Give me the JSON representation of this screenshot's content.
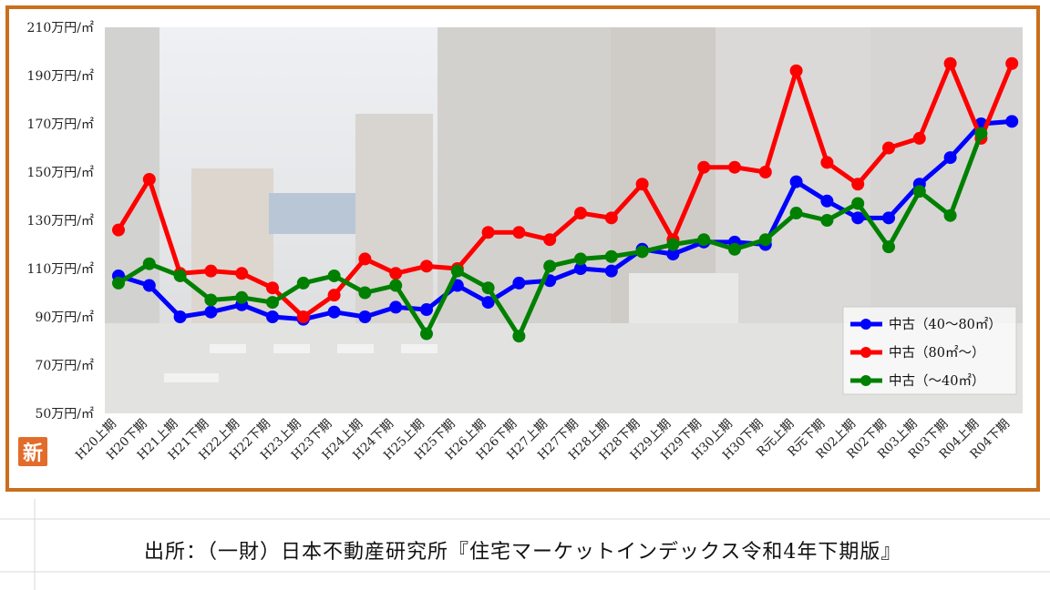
{
  "chart_data": {
    "type": "line",
    "ylim": [
      50,
      210
    ],
    "yticks": [
      {
        "value": 210,
        "label": "210万円/㎡"
      },
      {
        "value": 190,
        "label": "190万円/㎡"
      },
      {
        "value": 170,
        "label": "170万円/㎡"
      },
      {
        "value": 150,
        "label": "150万円/㎡"
      },
      {
        "value": 130,
        "label": "130万円/㎡"
      },
      {
        "value": 110,
        "label": "110万円/㎡"
      },
      {
        "value": 90,
        "label": "90万円/㎡"
      },
      {
        "value": 70,
        "label": "70万円/㎡"
      },
      {
        "value": 50,
        "label": "50万円/㎡"
      }
    ],
    "categories": [
      "H20上期",
      "H20下期",
      "H21上期",
      "H21下期",
      "H22上期",
      "H22下期",
      "H23上期",
      "H23下期",
      "H24上期",
      "H24下期",
      "H25上期",
      "H25下期",
      "H26上期",
      "H26下期",
      "H27上期",
      "H27下期",
      "H28上期",
      "H28下期",
      "H29上期",
      "H29下期",
      "H30上期",
      "H30下期",
      "R元上期",
      "R元下期",
      "R02上期",
      "R02下期",
      "R03上期",
      "R03下期",
      "R04上期",
      "R04下期"
    ],
    "series": [
      {
        "name": "中古（40～80㎡）",
        "color": "#0000ff",
        "values": [
          107,
          103,
          90,
          92,
          95,
          90,
          89,
          92,
          90,
          94,
          93,
          103,
          96,
          104,
          105,
          110,
          109,
          118,
          116,
          121,
          121,
          120,
          146,
          138,
          131,
          131,
          145,
          156,
          170,
          171
        ]
      },
      {
        "name": "中古（80㎡～）",
        "color": "#ff0000",
        "values": [
          126,
          147,
          108,
          109,
          108,
          102,
          90,
          99,
          114,
          108,
          111,
          110,
          125,
          125,
          122,
          133,
          131,
          145,
          122,
          152,
          152,
          150,
          192,
          154,
          145,
          160,
          164,
          195,
          164,
          195
        ]
      },
      {
        "name": "中古（～40㎡）",
        "color": "#008000",
        "values": [
          104,
          112,
          107,
          97,
          98,
          96,
          104,
          107,
          100,
          103,
          83,
          109,
          102,
          82,
          111,
          114,
          115,
          117,
          120,
          122,
          118,
          122,
          133,
          130,
          137,
          119,
          142,
          132,
          166,
          null
        ]
      }
    ],
    "legend_position": "bottom-right"
  },
  "badge_text": "新",
  "source_text": "出所：（一財）日本不動産研究所『住宅マーケットインデックス令和4年下期版』"
}
